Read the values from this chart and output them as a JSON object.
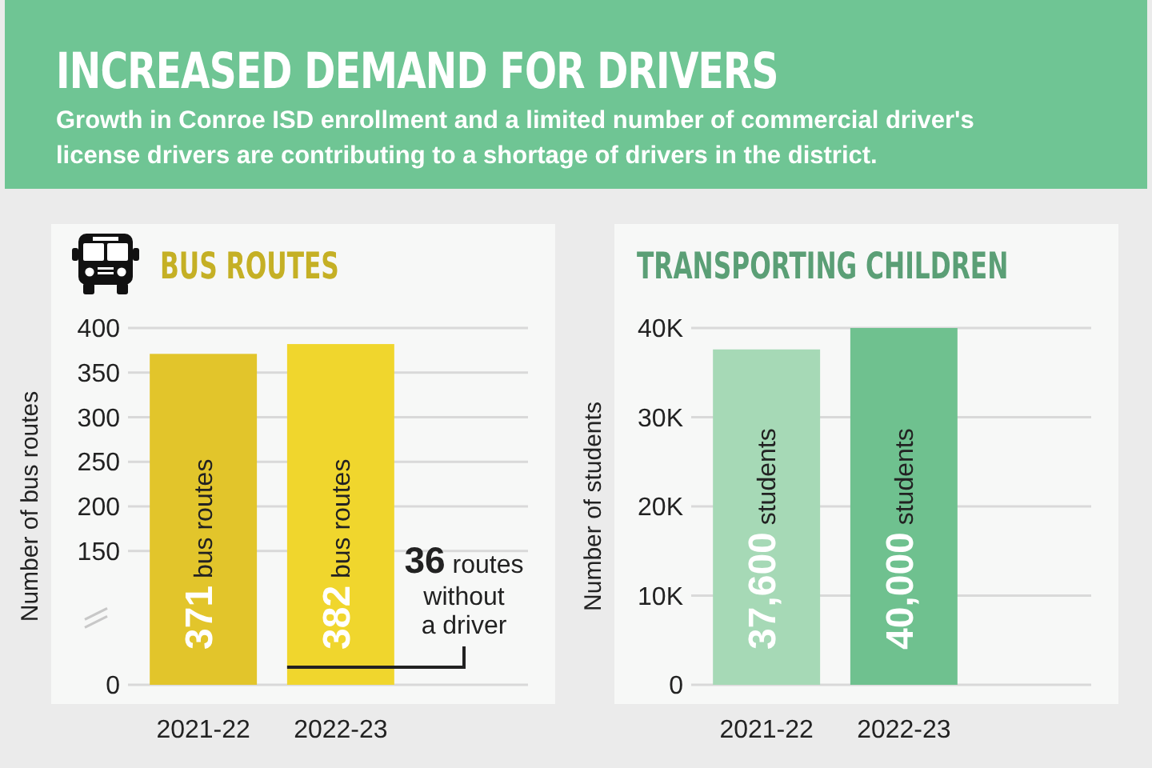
{
  "chart_data": [
    {
      "type": "other",
      "title": "INCREASED DEMAND FOR DRIVERS",
      "subtitle": "Growth in Conroe ISD enrollment and a limited number of commercial driver's license drivers are contributing to a shortage of drivers in the district."
    },
    {
      "type": "bar",
      "title": "BUS ROUTES",
      "categories": [
        "2021-22",
        "2022-23"
      ],
      "values": [
        371,
        382
      ],
      "colors": [
        "#e2c52b",
        "#f0d62d"
      ],
      "ylabel": "Number of bus routes",
      "ylim": [
        0,
        400
      ],
      "yticks": [
        0,
        150,
        200,
        250,
        300,
        350,
        400
      ],
      "grid": "y",
      "value_labels": [
        "371 bus routes",
        "382 bus routes"
      ],
      "annotations": [
        "36 routes without a driver"
      ]
    },
    {
      "type": "bar",
      "title": "TRANSPORTING CHILDREN",
      "categories": [
        "2021-22",
        "2022-23"
      ],
      "values": [
        37600,
        40000
      ],
      "colors": [
        "#a6d9b6",
        "#6fc18f"
      ],
      "ylabel": "Number of students",
      "ylim": [
        0,
        40000
      ],
      "yticks": [
        0,
        {
          "value": 10000,
          "label": "10K"
        },
        {
          "value": 20000,
          "label": "20K"
        },
        {
          "value": 30000,
          "label": "30K"
        },
        {
          "value": 40000,
          "label": "40K"
        }
      ],
      "grid": "y",
      "value_labels": [
        "37,600 students",
        "40,000 students"
      ]
    }
  ]
}
